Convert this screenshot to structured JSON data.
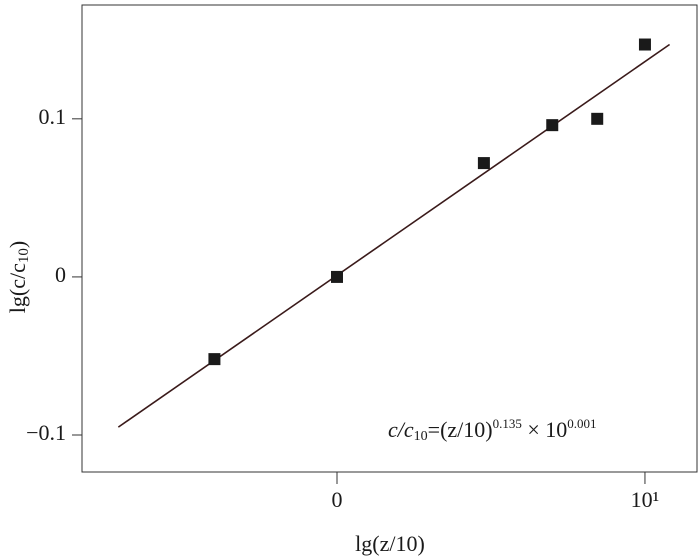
{
  "chart_data": {
    "type": "scatter",
    "x_label": "lg(z/10)",
    "y_label_parts": [
      "lg(c/c",
      "10",
      ")"
    ],
    "annotation_parts": [
      "c/c",
      "10",
      "=(z/10)",
      "0.135",
      " × 10",
      "0.001"
    ],
    "x": [
      -0.398,
      0,
      0.477,
      0.699,
      0.845,
      1
    ],
    "series": [
      {
        "color": "#1a1a1a",
        "values": [
          -0.052,
          0,
          0.072,
          0.096,
          0.1,
          0.147
        ]
      }
    ],
    "fit": {
      "color": "#3a1a1a",
      "x": [
        -0.71,
        1.08
      ],
      "values": [
        -0.095,
        0.147
      ]
    },
    "xlim": [
      -0.828,
      1.169
    ],
    "ylim": [
      -0.1234,
      0.172
    ],
    "xticks": [
      0,
      {
        "value": 1,
        "label": "10¹"
      }
    ],
    "yticks": [
      {
        "value": -0.1,
        "label": "−0.1"
      },
      0,
      0.1
    ],
    "grid": false
  }
}
